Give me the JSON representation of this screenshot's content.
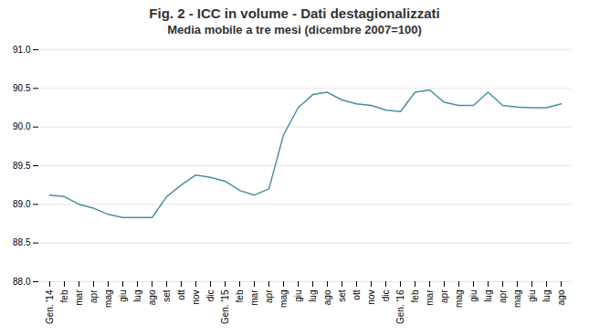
{
  "chart_data": {
    "type": "line",
    "title": "Fig. 2 - ICC in volume - Dati destagionalizzati",
    "subtitle": "Media mobile a tre mesi (dicembre 2007=100)",
    "categories": [
      "Gen. '14",
      "feb",
      "mar",
      "apr",
      "mag",
      "giu",
      "lug",
      "ago",
      "set",
      "ott",
      "nov",
      "dic",
      "Gen. '15",
      "feb",
      "mar",
      "apr",
      "mag",
      "giu",
      "lug",
      "ago",
      "set",
      "ott",
      "nov",
      "dic",
      "Gen. '16",
      "feb",
      "mar",
      "apr",
      "mag",
      "giu",
      "lug",
      "apr",
      "mag",
      "giu",
      "lug",
      "ago"
    ],
    "values": [
      89.12,
      89.1,
      89.0,
      88.95,
      88.87,
      88.83,
      88.83,
      88.83,
      89.1,
      89.25,
      89.38,
      89.35,
      89.3,
      89.18,
      89.12,
      89.2,
      89.9,
      90.25,
      90.42,
      90.45,
      90.35,
      90.3,
      90.28,
      90.22,
      90.2,
      90.45,
      90.48,
      90.32,
      90.28,
      90.28,
      90.45,
      90.28,
      90.26,
      90.25,
      90.25,
      90.3
    ],
    "color": "#4a90a4",
    "ylim": [
      88.0,
      91.0
    ],
    "yticks": [
      {
        "value": 88,
        "label": "88.0"
      },
      88.5,
      {
        "value": 89,
        "label": "89.0"
      },
      89.5,
      {
        "value": 90,
        "label": "90.0"
      },
      90.5,
      {
        "value": 91,
        "label": "91.0"
      }
    ],
    "grid": true
  }
}
